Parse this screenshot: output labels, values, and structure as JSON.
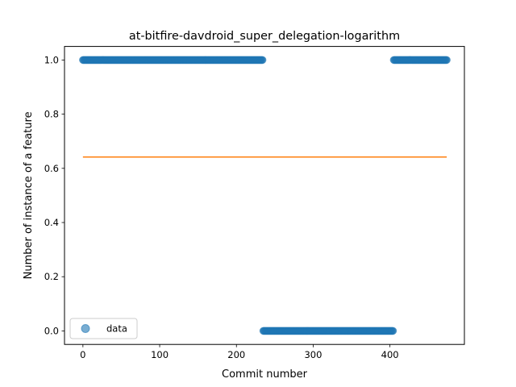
{
  "chart_data": {
    "type": "scatter",
    "title": "at-bitfire-davdroid_super_delegation-logarithm",
    "xlabel": "Commit number",
    "ylabel": "Number of instance of a feature",
    "xlim": [
      -24,
      497
    ],
    "ylim": [
      -0.05,
      1.05
    ],
    "xticks": [
      0,
      100,
      200,
      300,
      400
    ],
    "yticks": [
      0.0,
      0.2,
      0.4,
      0.6,
      0.8,
      1.0
    ],
    "xtick_labels": [
      "0",
      "100",
      "200",
      "300",
      "400"
    ],
    "ytick_labels": [
      "0.0",
      "0.2",
      "0.4",
      "0.6",
      "0.8",
      "1.0"
    ],
    "grid": false,
    "legend": {
      "position": "lower-left",
      "entries": [
        "data"
      ]
    },
    "series": [
      {
        "name": "data",
        "kind": "scatter",
        "color": "#1f77b4",
        "segments": [
          {
            "x_start": 0,
            "x_end": 234,
            "y": 1.0
          },
          {
            "x_start": 235,
            "x_end": 404,
            "y": 0.0
          },
          {
            "x_start": 405,
            "x_end": 474,
            "y": 1.0
          }
        ]
      },
      {
        "kind": "line",
        "color": "#ff7f0e",
        "x": [
          0,
          474
        ],
        "y": [
          0.642,
          0.642
        ]
      }
    ]
  }
}
